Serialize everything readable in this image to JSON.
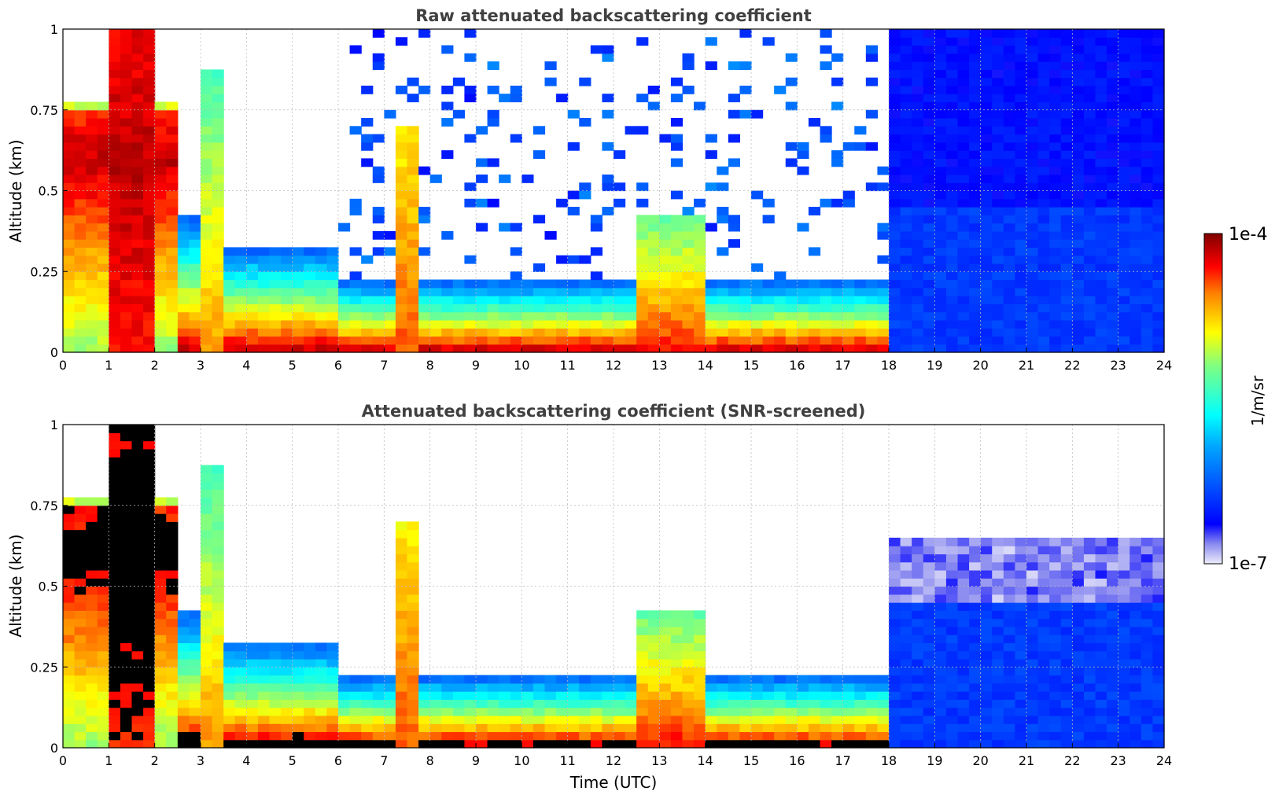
{
  "chart_data": [
    {
      "type": "heatmap",
      "title": "Raw attenuated backscattering coefficient",
      "xlabel": "",
      "ylabel": "Altitude (km)",
      "xlim": [
        0,
        24
      ],
      "ylim": [
        0,
        1
      ],
      "xticks": [
        "0",
        "1",
        "2",
        "3",
        "4",
        "5",
        "6",
        "7",
        "8",
        "9",
        "10",
        "11",
        "12",
        "13",
        "14",
        "15",
        "16",
        "17",
        "18",
        "19",
        "20",
        "21",
        "22",
        "23",
        "24"
      ],
      "yticks": [
        "0",
        "0.25",
        "0.5",
        "0.75",
        "1"
      ],
      "grid": true,
      "colormap": "jet",
      "features": [
        {
          "description": "dense aerosol/cloud layer",
          "time_start": 0,
          "time_end": 2.5,
          "altitude_top": 0.8
        },
        {
          "description": "dense plume",
          "time_start": 1.1,
          "time_end": 2.0,
          "altitude_top": 1.0
        },
        {
          "description": "surface layer",
          "time_start": 2.5,
          "time_end": 18,
          "altitude_top": 0.25
        },
        {
          "description": "plume",
          "time_start": 3.0,
          "time_end": 3.4,
          "altitude_top": 0.9
        },
        {
          "description": "plume",
          "time_start": 7.3,
          "time_end": 7.8,
          "altitude_top": 0.72
        },
        {
          "description": "plume",
          "time_start": 12.6,
          "time_end": 14.0,
          "altitude_top": 0.45
        },
        {
          "description": "noise field",
          "time_start": 18,
          "time_end": 24,
          "altitude_top": 1.0
        }
      ]
    },
    {
      "type": "heatmap",
      "title": "Attenuated backscattering coefficient (SNR-screened)",
      "xlabel": "Time (UTC)",
      "ylabel": "Altitude (km)",
      "xlim": [
        0,
        24
      ],
      "ylim": [
        0,
        1
      ],
      "xticks": [
        "0",
        "1",
        "2",
        "3",
        "4",
        "5",
        "6",
        "7",
        "8",
        "9",
        "10",
        "11",
        "12",
        "13",
        "14",
        "15",
        "16",
        "17",
        "18",
        "19",
        "20",
        "21",
        "22",
        "23",
        "24"
      ],
      "yticks": [
        "0",
        "0.25",
        "0.5",
        "0.75",
        "1"
      ],
      "grid": true,
      "colormap": "jet",
      "saturated_color": "#000000",
      "features": [
        {
          "description": "dense aerosol/cloud layer",
          "time_start": 0,
          "time_end": 2.5,
          "altitude_top": 0.8
        },
        {
          "description": "surface layer",
          "time_start": 2.5,
          "time_end": 18,
          "altitude_top": 0.25
        },
        {
          "description": "noise field",
          "time_start": 18,
          "time_end": 24,
          "altitude_top": 0.65
        }
      ]
    }
  ],
  "colorbar": {
    "label": "1/m/sr",
    "max_label": "1e-4",
    "min_label": "1e-7",
    "scale": "log",
    "range": [
      1e-07,
      0.0001
    ]
  }
}
